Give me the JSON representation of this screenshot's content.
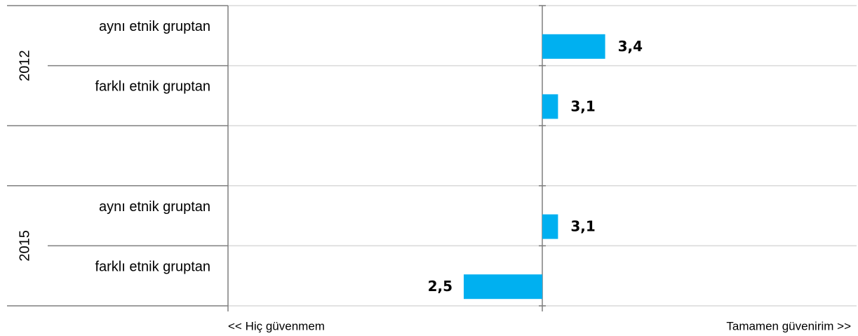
{
  "chart_data": {
    "type": "bar",
    "orientation": "horizontal",
    "categories": [
      "aynı etnik gruptan",
      "farklı  etnik gruptan",
      null,
      "aynı etnik gruptan",
      "farklı  etnik gruptan"
    ],
    "values": [
      3.4,
      3.1,
      null,
      3.1,
      2.5
    ],
    "value_labels": [
      "3,4",
      "3,1",
      null,
      "3,1",
      "2,5"
    ],
    "groups": [
      {
        "label": "2012",
        "rows": [
          0,
          1
        ]
      },
      {
        "label": "2015",
        "rows": [
          3,
          4
        ]
      }
    ],
    "color": "#00b0f0",
    "xlim": [
      1,
      5
    ],
    "baseline": 3,
    "axis_left_label": "<< Hiç güvenmem",
    "axis_right_label": "Tamamen güvenirim >>"
  }
}
